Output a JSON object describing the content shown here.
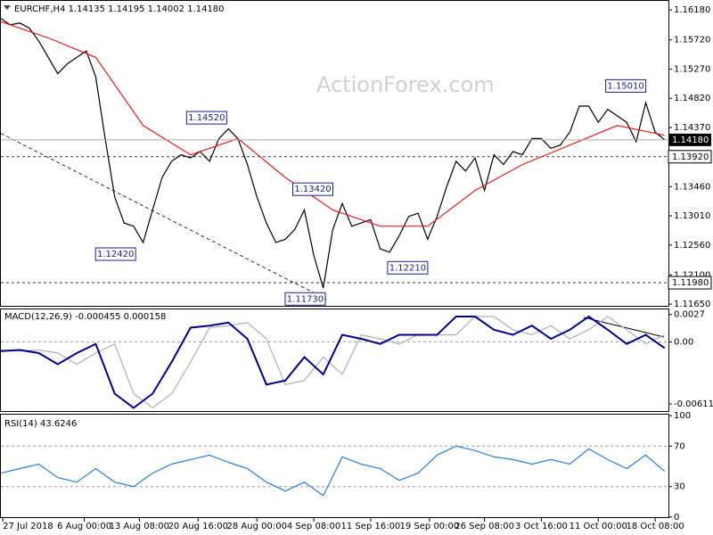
{
  "chart_data": [
    {
      "type": "line",
      "title": "EURCHF,H4 1.14135 1.14195 1.14002 1.14180",
      "watermark": "ActionForex.com",
      "xlim": [
        0,
        352
      ],
      "ylim": [
        1.1161,
        1.1632
      ],
      "yticks": [
        {
          "value": 1.1618,
          "label": "1.16180"
        },
        {
          "value": 1.1572,
          "label": "1.15720"
        },
        {
          "value": 1.1527,
          "label": "1.15270"
        },
        {
          "value": 1.1482,
          "label": "1.14820"
        },
        {
          "value": 1.1437,
          "label": "1.14370"
        },
        {
          "value": 1.1346,
          "label": "1.13460"
        },
        {
          "value": 1.1301,
          "label": "1.13010"
        },
        {
          "value": 1.1256,
          "label": "1.12560"
        },
        {
          "value": 1.121,
          "label": "1.12100"
        },
        {
          "value": 1.1165,
          "label": "1.11650"
        }
      ],
      "x": [
        0,
        5,
        10,
        15,
        20,
        25,
        30,
        35,
        40,
        45,
        50,
        55,
        60,
        65,
        70,
        75,
        80,
        85,
        90,
        95,
        100,
        105,
        110,
        115,
        120,
        125,
        130,
        135,
        140,
        145,
        150,
        155,
        160,
        165,
        170,
        175,
        180,
        185,
        190,
        195,
        200,
        205,
        210,
        215,
        220,
        225,
        230,
        235,
        240,
        245,
        250,
        255,
        260,
        265,
        270,
        275,
        280,
        285,
        290,
        295,
        300,
        305,
        310,
        315,
        320,
        325,
        330,
        335,
        340,
        345,
        350
      ],
      "series": [
        {
          "color": "#000000",
          "values": [
            1.1605,
            1.1595,
            1.1598,
            1.159,
            1.157,
            1.1545,
            1.152,
            1.1535,
            1.1545,
            1.1555,
            1.1515,
            1.142,
            1.133,
            1.129,
            1.1285,
            1.126,
            1.131,
            1.136,
            1.1385,
            1.1395,
            1.139,
            1.14,
            1.1385,
            1.142,
            1.1435,
            1.142,
            1.138,
            1.133,
            1.129,
            1.126,
            1.1265,
            1.128,
            1.131,
            1.124,
            1.119,
            1.128,
            1.132,
            1.1285,
            1.129,
            1.1295,
            1.125,
            1.1245,
            1.127,
            1.13,
            1.1305,
            1.1265,
            1.13,
            1.1345,
            1.1385,
            1.137,
            1.139,
            1.134,
            1.1395,
            1.138,
            1.14,
            1.1395,
            1.142,
            1.142,
            1.1405,
            1.141,
            1.143,
            1.147,
            1.147,
            1.1445,
            1.1465,
            1.1455,
            1.1445,
            1.1415,
            1.1475,
            1.143,
            1.1418
          ]
        },
        {
          "color": "#e02020",
          "x": [
            0,
            25,
            50,
            75,
            100,
            125,
            150,
            175,
            200,
            225,
            250,
            275,
            300,
            325,
            350
          ],
          "values": [
            1.16,
            1.1575,
            1.1545,
            1.144,
            1.1395,
            1.142,
            1.136,
            1.131,
            1.1285,
            1.1285,
            1.134,
            1.138,
            1.141,
            1.144,
            1.1425
          ]
        }
      ],
      "trendline": {
        "x": [
          0,
          172
        ],
        "values": [
          1.1428,
          1.1172
        ]
      },
      "annotations": [
        {
          "label": "1.14520",
          "value": 1.1452,
          "x": 120
        },
        {
          "label": "1.12420",
          "value": 1.1242,
          "x": 72
        },
        {
          "label": "1.13420",
          "value": 1.1342,
          "x": 176
        },
        {
          "label": "1.11730",
          "value": 1.1173,
          "x": 172
        },
        {
          "label": "1.12210",
          "value": 1.1221,
          "x": 226
        },
        {
          "label": "1.15010",
          "value": 1.1501,
          "x": 341
        }
      ],
      "levels": [
        {
          "value": 1.1392,
          "label": "1.13920"
        },
        {
          "value": 1.1198,
          "label": "1.11980"
        }
      ],
      "current_price": {
        "value": 1.1418,
        "label": "1.14180"
      }
    },
    {
      "type": "line",
      "title": "MACD(12,26,9) -0.000455 0.000158",
      "xlim": [
        0,
        352
      ],
      "ylim": [
        -0.0069,
        0.0032
      ],
      "yticks": [
        0.0027,
        {
          "value": 0,
          "label": "0.00"
        },
        -0.006114
      ],
      "hlines": [
        0
      ],
      "x": [
        0,
        10,
        20,
        30,
        40,
        50,
        60,
        70,
        80,
        90,
        100,
        110,
        120,
        130,
        140,
        150,
        160,
        170,
        180,
        190,
        200,
        210,
        220,
        230,
        240,
        250,
        260,
        270,
        280,
        290,
        300,
        310,
        320,
        330,
        340,
        350
      ],
      "series": [
        {
          "color": "#b0b0b0",
          "values": [
            -0.0008,
            -0.0009,
            -0.0008,
            -0.0011,
            -0.0022,
            -0.0011,
            -0.0002,
            -0.0051,
            -0.0065,
            -0.0051,
            -0.002,
            0.0014,
            0.0016,
            0.0019,
            0.0003,
            -0.0042,
            -0.0038,
            -0.0015,
            -0.0032,
            0.0007,
            0.0003,
            -0.0002,
            0.0007,
            0.0007,
            0.0007,
            0.0025,
            0.0025,
            0.0012,
            0.0007,
            0.0016,
            0.0003,
            0.0012,
            0.0025,
            0.0012,
            -0.0002,
            0.0007
          ]
        },
        {
          "color": "#000080",
          "values": [
            -0.0009,
            -0.0008,
            -0.0011,
            -0.0022,
            -0.0011,
            -0.0002,
            -0.0051,
            -0.0065,
            -0.0051,
            -0.002,
            0.0014,
            0.0016,
            0.0019,
            0.0003,
            -0.0042,
            -0.0038,
            -0.0015,
            -0.0032,
            0.0007,
            0.0003,
            -0.0002,
            0.0007,
            0.0007,
            0.0007,
            0.0025,
            0.0025,
            0.0012,
            0.0007,
            0.0016,
            0.0003,
            0.0012,
            0.0025,
            0.0012,
            -0.0002,
            0.0007,
            -0.0006
          ]
        }
      ]
    },
    {
      "type": "line",
      "title": "RSI(14) 43.6246",
      "xlim": [
        0,
        352
      ],
      "ylim": [
        -1,
        101
      ],
      "yticks": [
        100,
        70,
        30,
        0
      ],
      "hlines": [
        30,
        70
      ],
      "x": [
        0,
        10,
        20,
        30,
        40,
        50,
        60,
        70,
        80,
        90,
        100,
        110,
        120,
        130,
        140,
        150,
        160,
        170,
        180,
        190,
        200,
        210,
        220,
        230,
        240,
        250,
        260,
        270,
        280,
        290,
        300,
        310,
        320,
        330,
        340,
        350
      ],
      "series": [
        {
          "color": "#2a7fd4",
          "values": [
            43.3,
            47.8,
            52.2,
            38.9,
            34.4,
            47.8,
            34.4,
            30,
            43.3,
            52.2,
            56.7,
            61.1,
            54,
            47.8,
            34.4,
            25.6,
            34.4,
            21.1,
            59.3,
            52.2,
            47.8,
            36.2,
            43.3,
            61.1,
            70,
            65.6,
            59.3,
            56.7,
            52.2,
            56.7,
            52.2,
            67.3,
            56.7,
            47.8,
            61.1,
            45.1
          ]
        }
      ],
      "xticks": [
        {
          "value": 1,
          "label": "27 Jul 2018"
        },
        {
          "value": 44,
          "label": "6 Aug 00:00"
        },
        {
          "value": 73,
          "label": "13 Aug 08:00"
        },
        {
          "value": 104,
          "label": "20 Aug 16:00"
        },
        {
          "value": 135,
          "label": "28 Aug 00:00"
        },
        {
          "value": 165,
          "label": "4 Sep 08:00"
        },
        {
          "value": 195,
          "label": "11 Sep 16:00"
        },
        {
          "value": 226,
          "label": "19 Sep 00:00"
        },
        {
          "value": 255,
          "label": "26 Sep 08:00"
        },
        {
          "value": 285,
          "label": "3 Oct 16:00"
        },
        {
          "value": 315,
          "label": "11 Oct 00:00"
        },
        {
          "value": 345,
          "label": "18 Oct 08:00"
        }
      ]
    }
  ]
}
